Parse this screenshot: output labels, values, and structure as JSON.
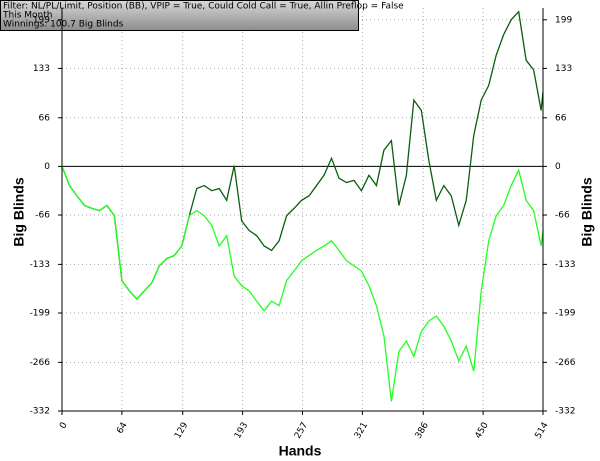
{
  "chart_data": {
    "type": "line",
    "annotations": [
      "Filter: NL/PL/Limit, Position (BB), VPIP = True, Could Cold Call = True, Allin Preflop = False",
      "This Month",
      "Winnings: 100.7 Big Blinds"
    ],
    "xlabel": "Hands",
    "ylabel": "Big Blinds",
    "y2label": "Big Blinds",
    "x": [
      0,
      8,
      16,
      24,
      32,
      40,
      48,
      56,
      64,
      72,
      80,
      88,
      96,
      104,
      112,
      120,
      128,
      136,
      144,
      152,
      160,
      168,
      176,
      184,
      192,
      200,
      208,
      216,
      224,
      232,
      240,
      248,
      256,
      264,
      272,
      280,
      288,
      296,
      304,
      312,
      320,
      328,
      336,
      344,
      352,
      360,
      368,
      376,
      384,
      392,
      400,
      408,
      416,
      424,
      432,
      440,
      448,
      456,
      464,
      472,
      480,
      488,
      496,
      504,
      512,
      514
    ],
    "series": [
      {
        "color": "#0b5e0b",
        "values": [
          0,
          -26,
          -40,
          -53,
          -57,
          -60,
          -53,
          -67,
          -155,
          -169,
          -180,
          -169,
          -158,
          -135,
          -125,
          -121,
          -108,
          -67,
          -30,
          -26,
          -33,
          -30,
          -46,
          1,
          -74,
          -87,
          -94,
          -108,
          -114,
          -101,
          -67,
          -57,
          -46,
          -40,
          -26,
          -12,
          11,
          -16,
          -22,
          -19,
          -33,
          -12,
          -26,
          22,
          35,
          -53,
          -12,
          90,
          76,
          8,
          -46,
          -26,
          -40,
          -80,
          -46,
          42,
          90,
          110,
          151,
          179,
          199,
          210,
          144,
          131,
          76,
          101
        ]
      },
      {
        "color": "#22ff22",
        "values": [
          0,
          -26,
          -40,
          -53,
          -57,
          -60,
          -53,
          -67,
          -155,
          -169,
          -180,
          -169,
          -158,
          -135,
          -125,
          -121,
          -108,
          -67,
          -60,
          -67,
          -80,
          -108,
          -94,
          -149,
          -162,
          -169,
          -183,
          -196,
          -183,
          -189,
          -155,
          -142,
          -128,
          -121,
          -114,
          -108,
          -101,
          -114,
          -128,
          -135,
          -142,
          -162,
          -189,
          -230,
          -319,
          -251,
          -237,
          -258,
          -224,
          -210,
          -203,
          -217,
          -237,
          -264,
          -244,
          -278,
          -169,
          -101,
          -67,
          -53,
          -26,
          -5,
          -46,
          -60,
          -108,
          -87
        ]
      }
    ],
    "xlim": [
      0,
      514
    ],
    "xticks": [
      0,
      64,
      129,
      193,
      257,
      321,
      386,
      450,
      514
    ],
    "ylim": [
      -332,
      215
    ],
    "yticks": [
      -332,
      -266,
      -199,
      -133,
      -66,
      0,
      66,
      133,
      199
    ],
    "y2lim": [
      -332,
      215
    ],
    "y2ticks": [
      -332,
      -266,
      -199,
      -133,
      -66,
      0,
      66,
      133,
      199
    ],
    "grid": true,
    "zero_line": true
  }
}
